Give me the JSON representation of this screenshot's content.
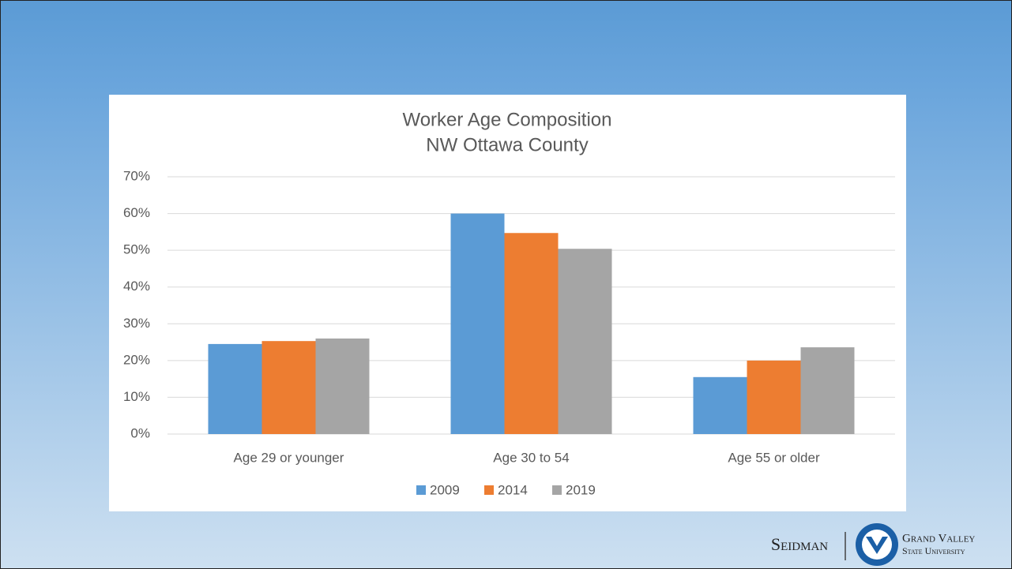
{
  "chart_data": {
    "type": "bar",
    "title": "Worker Age Composition",
    "subtitle": "NW Ottawa County",
    "categories": [
      "Age 29 or younger",
      "Age 30 to 54",
      "Age 55 or older"
    ],
    "series": [
      {
        "name": "2009",
        "color": "#5b9bd5",
        "values": [
          24.5,
          60,
          15.5
        ]
      },
      {
        "name": "2014",
        "color": "#ed7d31",
        "values": [
          25.3,
          54.7,
          20
        ]
      },
      {
        "name": "2019",
        "color": "#a5a5a5",
        "values": [
          26,
          50.4,
          23.6
        ]
      }
    ],
    "ylim": [
      0,
      70
    ],
    "yticks": [
      {
        "value": 0,
        "label": "0%"
      },
      {
        "value": 10,
        "label": "10%"
      },
      {
        "value": 20,
        "label": "20%"
      },
      {
        "value": 30,
        "label": "30%"
      },
      {
        "value": 40,
        "label": "40%"
      },
      {
        "value": 50,
        "label": "50%"
      },
      {
        "value": 60,
        "label": "60%"
      },
      {
        "value": 70,
        "label": "70%"
      }
    ],
    "grid": true,
    "legend": "bottom"
  },
  "logo": {
    "left": "Seidman",
    "right_top": "Grand Valley",
    "right_bottom": "State University"
  }
}
